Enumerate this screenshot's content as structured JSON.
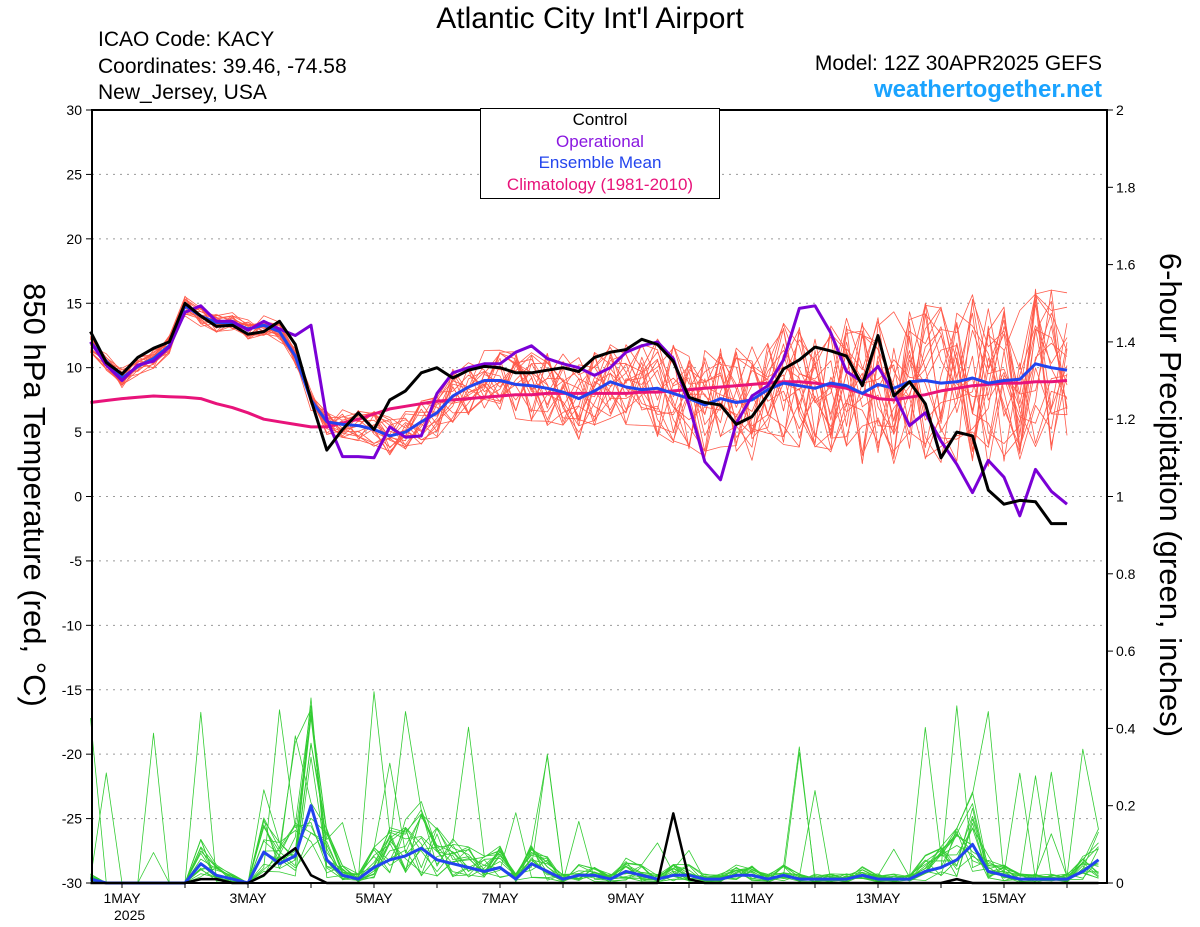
{
  "header": {
    "title": "Atlantic City Int'l Airport",
    "icao": "ICAO Code: KACY",
    "coordinates": "Coordinates: 39.46, -74.58",
    "region": "New_Jersey, USA",
    "model": "Model: 12Z 30APR2025 GEFS",
    "site": "weathertogether.net"
  },
  "colors": {
    "members_temp": "#ff5a4a",
    "members_precip": "#33cc33",
    "control": "#000000",
    "operational": "#7a00d6",
    "ensemble_mean": "#2244ee",
    "climatology": "#e8137a",
    "site": "#1aa3ff"
  },
  "chart_data": {
    "type": "line",
    "title": "Atlantic City Int'l Airport",
    "xlabel": "",
    "ylabel": "850 hPa Temperature (red, °C)",
    "y2label": "6-hour Precipitation (green, inches)",
    "ylim": [
      -30,
      30
    ],
    "y2lim": [
      0,
      2
    ],
    "xlim_days": [
      0.4,
      16.5
    ],
    "x_ticks": [
      {
        "day": 1,
        "label": "1MAY",
        "sub": "2025"
      },
      {
        "day": 3,
        "label": "3MAY",
        "sub": ""
      },
      {
        "day": 5,
        "label": "5MAY",
        "sub": ""
      },
      {
        "day": 7,
        "label": "7MAY",
        "sub": ""
      },
      {
        "day": 9,
        "label": "9MAY",
        "sub": ""
      },
      {
        "day": 11,
        "label": "11MAY",
        "sub": ""
      },
      {
        "day": 13,
        "label": "13MAY",
        "sub": ""
      },
      {
        "day": 15,
        "label": "15MAY",
        "sub": ""
      }
    ],
    "y_ticks": [
      "30",
      "25",
      "20",
      "15",
      "10",
      "5",
      "0",
      "-5",
      "-10",
      "-15",
      "-20",
      "-25",
      "-30"
    ],
    "y2_ticks": [
      "2",
      "1.8",
      "1.6",
      "1.4",
      "1.2",
      "1",
      "0.8",
      "0.6",
      "0.4",
      "0.2",
      "0"
    ],
    "grid": true,
    "legend": {
      "position": "top-center",
      "entries": [
        "Control",
        "Operational",
        "Ensemble Mean",
        "Climatology (1981-2010)"
      ]
    },
    "x_days": [
      0.5,
      0.75,
      1.0,
      1.25,
      1.5,
      1.75,
      2.0,
      2.25,
      2.5,
      2.75,
      3.0,
      3.25,
      3.5,
      3.75,
      4.0,
      4.25,
      4.5,
      4.75,
      5.0,
      5.25,
      5.5,
      5.75,
      6.0,
      6.25,
      6.5,
      6.75,
      7.0,
      7.25,
      7.5,
      7.75,
      8.0,
      8.25,
      8.5,
      8.75,
      9.0,
      9.25,
      9.5,
      9.75,
      10.0,
      10.25,
      10.5,
      10.75,
      11.0,
      11.25,
      11.5,
      11.75,
      12.0,
      12.25,
      12.5,
      12.75,
      13.0,
      13.25,
      13.5,
      13.75,
      14.0,
      14.25,
      14.5,
      14.75,
      15.0,
      15.25,
      15.5,
      15.75,
      16.0,
      16.25,
      16.5
    ],
    "series": [
      {
        "name": "Control",
        "axis": "temp",
        "values": [
          12.8,
          10.4,
          9.5,
          10.8,
          11.5,
          12.0,
          15.0,
          14.0,
          13.2,
          13.3,
          12.6,
          12.8,
          13.6,
          11.8,
          7.5,
          3.6,
          5.2,
          6.5,
          5.2,
          7.5,
          8.2,
          9.6,
          10.0,
          9.2,
          9.8,
          10.1,
          10.0,
          9.6,
          9.6,
          9.8,
          10.0,
          9.7,
          10.8,
          11.2,
          11.4,
          12.2,
          11.8,
          10.5,
          7.7,
          7.3,
          7.1,
          5.6,
          6.2,
          7.9,
          9.9,
          10.6,
          11.6,
          11.3,
          10.9,
          8.6,
          12.5,
          7.8,
          8.9,
          7.2,
          3.0,
          5.0,
          4.7,
          0.5,
          -0.6,
          -0.3,
          -0.4,
          -2.1,
          -2.1,
          null,
          null
        ]
      },
      {
        "name": "Operational",
        "axis": "temp",
        "values": [
          12.0,
          10.2,
          9.0,
          10.2,
          10.5,
          11.6,
          14.3,
          14.8,
          13.6,
          13.6,
          12.9,
          13.6,
          13.0,
          12.5,
          13.3,
          6.0,
          3.1,
          3.1,
          3.0,
          5.4,
          4.6,
          4.7,
          8.0,
          9.6,
          10.0,
          10.3,
          10.3,
          11.2,
          11.7,
          10.7,
          10.3,
          10.0,
          9.4,
          10.0,
          11.2,
          11.7,
          12.0,
          10.7,
          7.1,
          2.7,
          1.3,
          5.7,
          7.8,
          8.6,
          10.6,
          14.6,
          14.8,
          12.7,
          9.7,
          8.9,
          10.1,
          8.0,
          5.5,
          6.5,
          4.3,
          2.5,
          0.3,
          2.8,
          1.5,
          -1.5,
          2.1,
          0.4,
          -0.6,
          null,
          null
        ]
      },
      {
        "name": "Ensemble Mean",
        "axis": "temp",
        "values": [
          12.0,
          10.5,
          9.2,
          10.1,
          10.7,
          11.7,
          14.8,
          14.0,
          13.5,
          13.5,
          13.0,
          13.3,
          12.8,
          10.9,
          7.5,
          5.8,
          5.6,
          5.5,
          5.2,
          4.7,
          5.0,
          5.8,
          6.5,
          7.8,
          8.5,
          9.0,
          9.0,
          8.7,
          8.6,
          8.4,
          8.1,
          7.6,
          8.2,
          8.9,
          8.5,
          8.3,
          8.4,
          8.0,
          7.6,
          7.1,
          7.6,
          7.3,
          7.5,
          8.3,
          8.8,
          8.6,
          8.4,
          8.8,
          8.6,
          8.0,
          8.7,
          8.4,
          8.9,
          9.0,
          8.8,
          8.9,
          9.2,
          8.8,
          9.0,
          9.1,
          10.3,
          10.0,
          9.8,
          null,
          null
        ]
      },
      {
        "name": "Climatology (1981-2010)",
        "axis": "temp",
        "values": [
          7.3,
          7.45,
          7.6,
          7.7,
          7.8,
          7.75,
          7.7,
          7.6,
          7.2,
          6.9,
          6.5,
          6.0,
          5.8,
          5.6,
          5.4,
          5.4,
          5.7,
          6.0,
          6.4,
          6.8,
          7.0,
          7.2,
          7.4,
          7.5,
          7.6,
          7.7,
          7.8,
          7.9,
          7.9,
          8.0,
          8.0,
          8.0,
          8.0,
          8.0,
          8.0,
          8.1,
          8.1,
          8.2,
          8.3,
          8.4,
          8.5,
          8.6,
          8.7,
          8.8,
          8.9,
          8.9,
          8.8,
          8.6,
          8.4,
          8.0,
          7.6,
          7.5,
          7.7,
          7.9,
          8.2,
          8.4,
          8.6,
          8.7,
          8.8,
          8.8,
          8.9,
          8.9,
          9.0,
          null,
          null
        ]
      },
      {
        "name": "Control",
        "axis": "precip",
        "values": [
          0,
          0,
          0,
          0,
          0,
          0,
          0,
          0.01,
          0.01,
          0,
          0,
          0.02,
          0.06,
          0.09,
          0.02,
          0,
          0,
          0,
          0,
          0,
          0,
          0,
          0,
          0,
          0,
          0,
          0,
          0,
          0,
          0,
          0,
          0,
          0,
          0,
          0,
          0,
          0,
          0.18,
          0.01,
          0,
          0,
          0,
          0,
          0,
          0,
          0,
          0,
          0,
          0,
          0,
          0,
          0,
          0,
          0,
          0,
          0.01,
          0,
          0,
          0,
          0,
          0,
          0,
          0,
          0,
          0
        ]
      },
      {
        "name": "Ensemble Mean",
        "axis": "precip",
        "values": [
          0.01,
          0,
          0,
          0,
          0,
          0,
          0,
          0.05,
          0.02,
          0.01,
          0,
          0.08,
          0.05,
          0.07,
          0.2,
          0.06,
          0.02,
          0.01,
          0.04,
          0.06,
          0.07,
          0.09,
          0.06,
          0.05,
          0.04,
          0.03,
          0.04,
          0.01,
          0.05,
          0.03,
          0.01,
          0.02,
          0.02,
          0.01,
          0.03,
          0.02,
          0.01,
          0.02,
          0.02,
          0.01,
          0.01,
          0.02,
          0.02,
          0.01,
          0.02,
          0.01,
          0.01,
          0.01,
          0.01,
          0.02,
          0.01,
          0.01,
          0.01,
          0.03,
          0.04,
          0.06,
          0.1,
          0.03,
          0.02,
          0.01,
          0.01,
          0.01,
          0.01,
          0.03,
          0.06
        ]
      }
    ]
  }
}
